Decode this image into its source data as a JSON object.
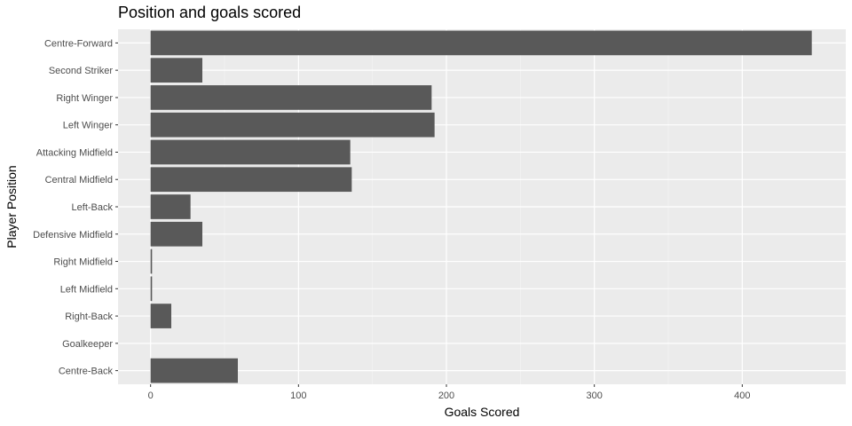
{
  "chart_data": {
    "type": "bar",
    "orientation": "horizontal",
    "title": "Position and goals scored",
    "xlabel": "Goals Scored",
    "ylabel": "Player Position",
    "xlim": [
      -22,
      470
    ],
    "x_ticks": [
      0,
      100,
      200,
      300,
      400
    ],
    "grid": true,
    "categories": [
      "Centre-Forward",
      "Second Striker",
      "Right Winger",
      "Left Winger",
      "Attacking Midfield",
      "Central Midfield",
      "Left-Back",
      "Defensive Midfield",
      "Right Midfield",
      "Left Midfield",
      "Right-Back",
      "Goalkeeper",
      "Centre-Back"
    ],
    "values": [
      447,
      35,
      190,
      192,
      135,
      136,
      27,
      35,
      1,
      1,
      14,
      0,
      59
    ],
    "colors": {
      "bar": "#595959",
      "panel": "#ebebeb",
      "grid_major": "#ffffff",
      "grid_minor": "#f5f5f5"
    }
  }
}
